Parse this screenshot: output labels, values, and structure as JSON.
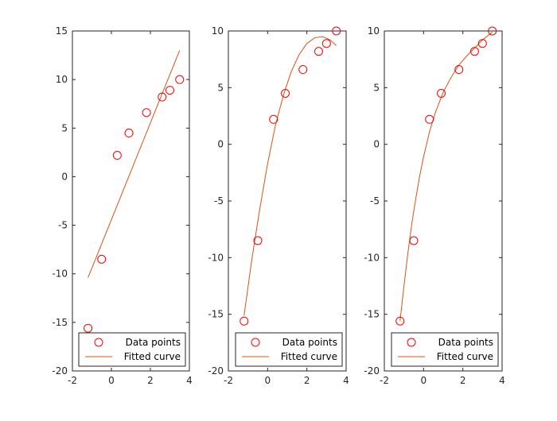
{
  "colors": {
    "points": "#ff0000",
    "curve": "#d95319",
    "axes": "#262626",
    "text": "#262626",
    "legend_border": "#262626"
  },
  "chart_data": [
    {
      "type": "scatter",
      "xlim": [
        -2,
        4
      ],
      "ylim": [
        -20,
        15
      ],
      "xticks": [
        -2,
        0,
        2,
        4
      ],
      "yticks": [
        -20,
        -15,
        -10,
        -5,
        0,
        5,
        10,
        15
      ],
      "grid": false,
      "legend_position": "bottom-right",
      "series": [
        {
          "name": "Data points",
          "marker": "circle",
          "x": [
            -1.2,
            -0.5,
            0.3,
            0.9,
            1.8,
            2.6,
            3.0,
            3.5
          ],
          "y": [
            -15.6,
            -8.5,
            2.2,
            4.5,
            6.6,
            8.2,
            8.9,
            10.0
          ]
        },
        {
          "name": "Fitted curve",
          "line": true,
          "x": [
            -1.2,
            3.5
          ],
          "y": [
            -10.4,
            13.0
          ]
        }
      ]
    },
    {
      "type": "scatter",
      "xlim": [
        -2,
        4
      ],
      "ylim": [
        -20,
        10
      ],
      "xticks": [
        -2,
        0,
        2,
        4
      ],
      "yticks": [
        -20,
        -15,
        -10,
        -5,
        0,
        5,
        10
      ],
      "grid": false,
      "legend_position": "bottom-right",
      "series": [
        {
          "name": "Data points",
          "marker": "circle",
          "x": [
            -1.2,
            -0.5,
            0.3,
            0.9,
            1.8,
            2.6,
            3.0,
            3.5
          ],
          "y": [
            -15.6,
            -8.5,
            2.2,
            4.5,
            6.6,
            8.2,
            8.9,
            10.0
          ]
        },
        {
          "name": "Fitted curve",
          "line": true,
          "x": [
            -1.2,
            -0.8,
            -0.4,
            0.0,
            0.4,
            0.8,
            1.2,
            1.6,
            2.0,
            2.4,
            2.8,
            3.2,
            3.5
          ],
          "y": [
            -15.1,
            -10.1,
            -5.7,
            -1.7,
            1.7,
            4.3,
            6.4,
            7.9,
            8.9,
            9.4,
            9.5,
            9.2,
            8.7
          ]
        }
      ]
    },
    {
      "type": "scatter",
      "xlim": [
        -2,
        4
      ],
      "ylim": [
        -20,
        10
      ],
      "xticks": [
        -2,
        0,
        2,
        4
      ],
      "yticks": [
        -20,
        -15,
        -10,
        -5,
        0,
        5,
        10
      ],
      "grid": false,
      "legend_position": "bottom-right",
      "series": [
        {
          "name": "Data points",
          "marker": "circle",
          "x": [
            -1.2,
            -0.5,
            0.3,
            0.9,
            1.8,
            2.6,
            3.0,
            3.5
          ],
          "y": [
            -15.6,
            -8.5,
            2.2,
            4.5,
            6.6,
            8.2,
            8.9,
            10.0
          ]
        },
        {
          "name": "Fitted curve",
          "line": true,
          "x": [
            -1.2,
            -1.0,
            -0.8,
            -0.6,
            -0.4,
            -0.2,
            0.0,
            0.3,
            0.6,
            1.0,
            1.4,
            1.8,
            2.2,
            2.6,
            3.0,
            3.5
          ],
          "y": [
            -15.6,
            -12.5,
            -9.6,
            -7.0,
            -4.8,
            -2.8,
            -1.1,
            1.1,
            2.8,
            4.6,
            5.9,
            7.0,
            7.8,
            8.5,
            9.2,
            9.9
          ]
        }
      ]
    }
  ]
}
